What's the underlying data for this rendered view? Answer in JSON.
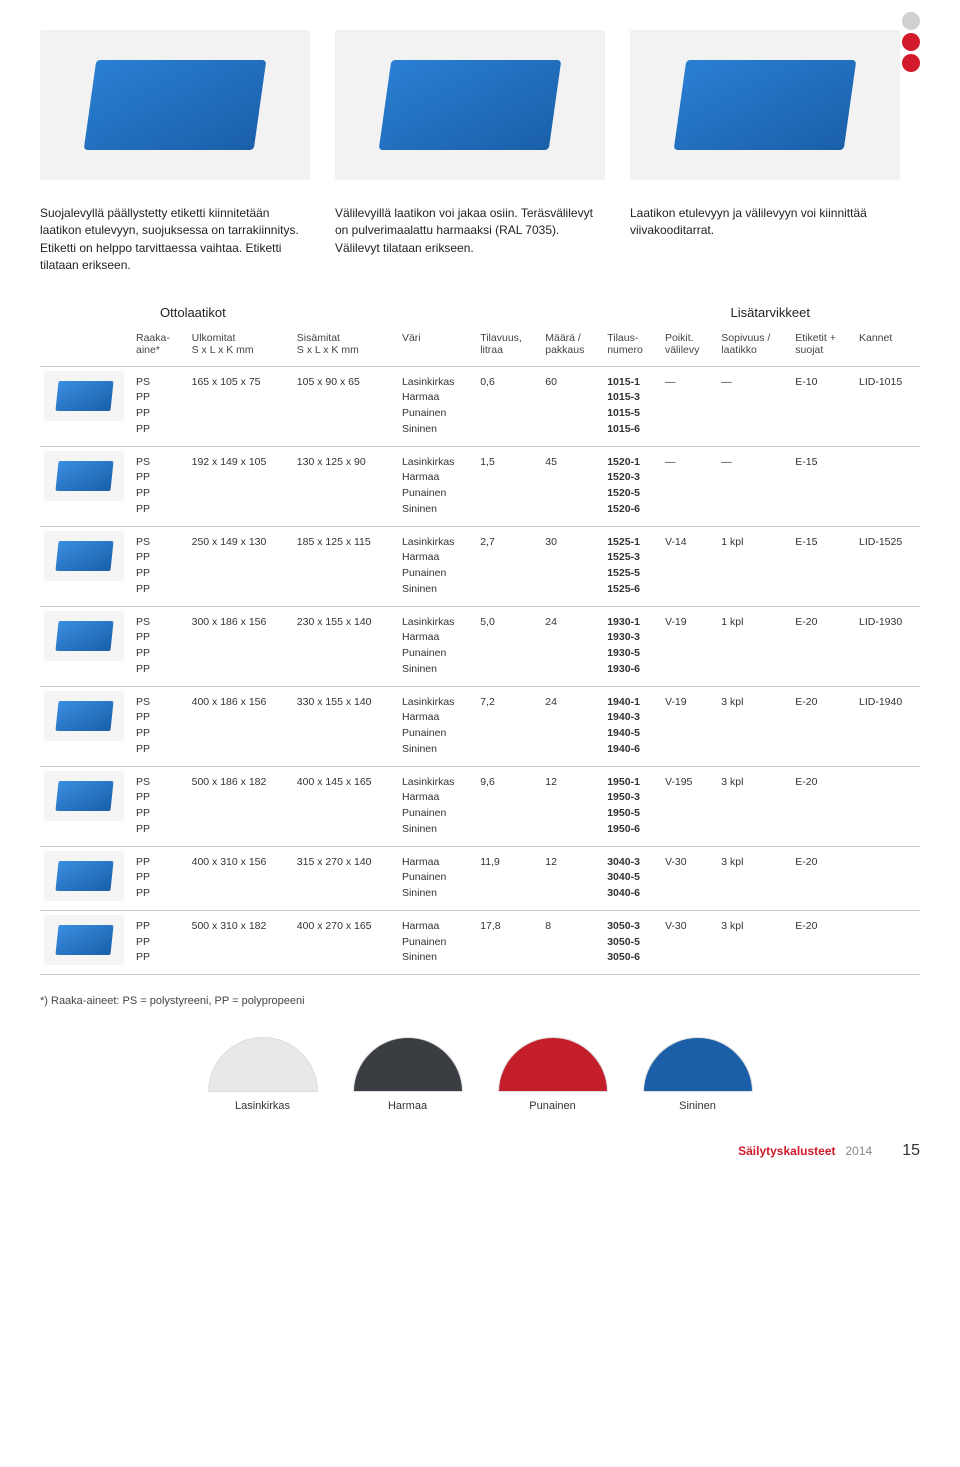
{
  "intro": {
    "col1": "Suojalevyllä päällystetty etiketti kiinnitetään laatikon etulevyyn, suojuksessa on tarrakiinnitys. Etiketti on helppo tarvittaessa vaihtaa. Etiketti tilataan erikseen.",
    "col2": "Välilevyillä laatikon voi jakaa osiin. Teräsvälilevyt on pulverimaalattu harmaaksi (RAL 7035). Välilevyt tilataan erikseen.",
    "col3": "Laatikon etulevyyn ja välilevyyn voi kiinnittää viivakooditarrat."
  },
  "sections": {
    "left": "Ottolaatikot",
    "right": "Lisätarvikkeet"
  },
  "headers": {
    "raaka": "Raaka-\naine*",
    "ulko": "Ulkomitat\nS x L x K mm",
    "sisa": "Sisämitat\nS x L x K mm",
    "vari": "Väri",
    "tilavuus": "Tilavuus,\nlitraa",
    "maara": "Määrä /\npakkaus",
    "tilaus": "Tilaus-\nnumero",
    "poikit": "Poikit.\nvälilevy",
    "sopivuus": "Sopivuus /\nlaatikko",
    "etiketit": "Etiketit +\nsuojat",
    "kannet": "Kannet"
  },
  "colors4": "Lasinkirkas\nHarmaa\nPunainen\nSininen",
  "colors3": "Harmaa\nPunainen\nSininen",
  "raaka4": "PS\nPP\nPP\nPP",
  "raaka3": "PP\nPP\nPP",
  "rows": [
    {
      "ulko": "165 x 105 x 75",
      "sisa": "105 x 90 x 65",
      "tilav": "0,6",
      "maara": "60",
      "tilaus": "1015-1\n1015-3\n1015-5\n1015-6",
      "poikit": "—",
      "sop": "—",
      "eti": "E-10",
      "kan": "LID-1015",
      "r": "r4",
      "c": "c4"
    },
    {
      "ulko": "192 x 149 x 105",
      "sisa": "130 x 125 x 90",
      "tilav": "1,5",
      "maara": "45",
      "tilaus": "1520-1\n1520-3\n1520-5\n1520-6",
      "poikit": "—",
      "sop": "—",
      "eti": "E-15",
      "kan": "",
      "r": "r4",
      "c": "c4"
    },
    {
      "ulko": "250 x 149 x 130",
      "sisa": "185 x 125 x 115",
      "tilav": "2,7",
      "maara": "30",
      "tilaus": "1525-1\n1525-3\n1525-5\n1525-6",
      "poikit": "V-14",
      "sop": "1 kpl",
      "eti": "E-15",
      "kan": "LID-1525",
      "r": "r4",
      "c": "c4"
    },
    {
      "ulko": "300 x 186 x 156",
      "sisa": "230 x 155 x 140",
      "tilav": "5,0",
      "maara": "24",
      "tilaus": "1930-1\n1930-3\n1930-5\n1930-6",
      "poikit": "V-19",
      "sop": "1 kpl",
      "eti": "E-20",
      "kan": "LID-1930",
      "r": "r4",
      "c": "c4"
    },
    {
      "ulko": "400 x 186 x 156",
      "sisa": "330 x 155 x 140",
      "tilav": "7,2",
      "maara": "24",
      "tilaus": "1940-1\n1940-3\n1940-5\n1940-6",
      "poikit": "V-19",
      "sop": "3 kpl",
      "eti": "E-20",
      "kan": "LID-1940",
      "r": "r4",
      "c": "c4"
    },
    {
      "ulko": "500 x 186 x 182",
      "sisa": "400 x 145 x 165",
      "tilav": "9,6",
      "maara": "12",
      "tilaus": "1950-1\n1950-3\n1950-5\n1950-6",
      "poikit": "V-195",
      "sop": "3 kpl",
      "eti": "E-20",
      "kan": "",
      "r": "r4",
      "c": "c4"
    },
    {
      "ulko": "400 x 310 x 156",
      "sisa": "315 x 270 x 140",
      "tilav": "11,9",
      "maara": "12",
      "tilaus": "3040-3\n3040-5\n3040-6",
      "poikit": "V-30",
      "sop": "3 kpl",
      "eti": "E-20",
      "kan": "",
      "r": "r3",
      "c": "c3"
    },
    {
      "ulko": "500 x 310 x 182",
      "sisa": "400 x 270 x 165",
      "tilav": "17,8",
      "maara": "8",
      "tilaus": "3050-3\n3050-5\n3050-6",
      "poikit": "V-30",
      "sop": "3 kpl",
      "eti": "E-20",
      "kan": "",
      "r": "r3",
      "c": "c3"
    }
  ],
  "footnote": "*) Raaka-aineet: PS = polystyreeni, PP = polypropeeni",
  "swatches": [
    {
      "label": "Lasinkirkas",
      "color": "#e8e8e8"
    },
    {
      "label": "Harmaa",
      "color": "#3a3e42"
    },
    {
      "label": "Punainen",
      "color": "#c41e2a"
    },
    {
      "label": "Sininen",
      "color": "#1a5fa8"
    }
  ],
  "footer": {
    "pub": "Säilytyskalusteet",
    "year": "2014",
    "page": "15"
  }
}
